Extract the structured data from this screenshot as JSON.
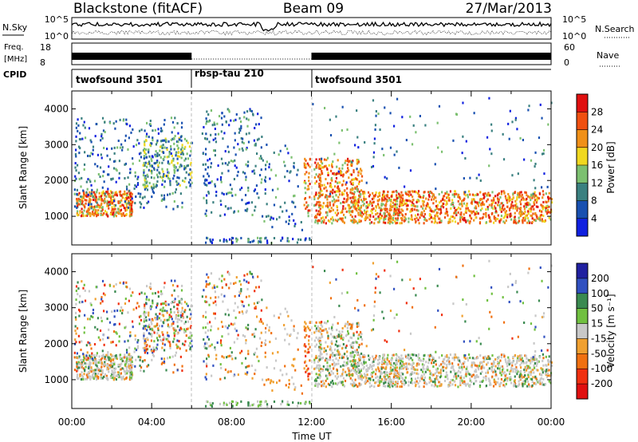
{
  "header": {
    "station": "Blackstone (fitACF)",
    "beam": "Beam 09",
    "date": "27/Mar/2013"
  },
  "labels": {
    "nsky": "N.Sky",
    "freq": "Freq.",
    "freq_unit": "[MHz]",
    "cpid": "CPID",
    "nsearch": "N.Search",
    "nave": "Nave",
    "sky_ticks": [
      "10^5",
      "10^0"
    ],
    "search_ticks": [
      "10^5",
      "10^0"
    ],
    "freq_ticks": [
      "18",
      "8"
    ],
    "nave_ticks": [
      "60",
      "0"
    ]
  },
  "cpid_segments": [
    {
      "label": "twofsound 3501",
      "start_hour": 0
    },
    {
      "label": "rbsp-tau 210",
      "start_hour": 6
    },
    {
      "label": "twofsound 3501",
      "start_hour": 12
    }
  ],
  "chart_data": [
    {
      "type": "heatmap",
      "panel": "power",
      "ylabel": "Slant Range [km]",
      "xlim": [
        0,
        24
      ],
      "ylim": [
        200,
        4500
      ],
      "y_ticks": [
        1000,
        2000,
        3000,
        4000
      ],
      "colorbar": {
        "label": "Power [dB]",
        "ticks": [
          "4",
          "8",
          "12",
          "16",
          "20",
          "24",
          "28"
        ],
        "colors": [
          "#1020e0",
          "#1850b0",
          "#3a8080",
          "#7cc070",
          "#f0d820",
          "#f09018",
          "#f05010",
          "#e01010"
        ]
      }
    },
    {
      "type": "heatmap",
      "panel": "velocity",
      "ylabel": "Slant Range [km]",
      "xlabel": "Time UT",
      "xlim": [
        0,
        24
      ],
      "ylim": [
        200,
        4500
      ],
      "y_ticks": [
        1000,
        2000,
        3000,
        4000
      ],
      "x_ticks": [
        "00:00",
        "04:00",
        "08:00",
        "12:00",
        "16:00",
        "20:00",
        "00:00"
      ],
      "colorbar": {
        "label": "Velocity [m s⁻¹]",
        "ticks": [
          "200",
          "100",
          "50",
          "15",
          "-15",
          "-50",
          "-100",
          "-200"
        ],
        "colors": [
          "#2020a0",
          "#3050c0",
          "#3a8a50",
          "#70c040",
          "#c8c8c8",
          "#f0a030",
          "#f07010",
          "#f03010",
          "#e01010"
        ]
      }
    }
  ]
}
